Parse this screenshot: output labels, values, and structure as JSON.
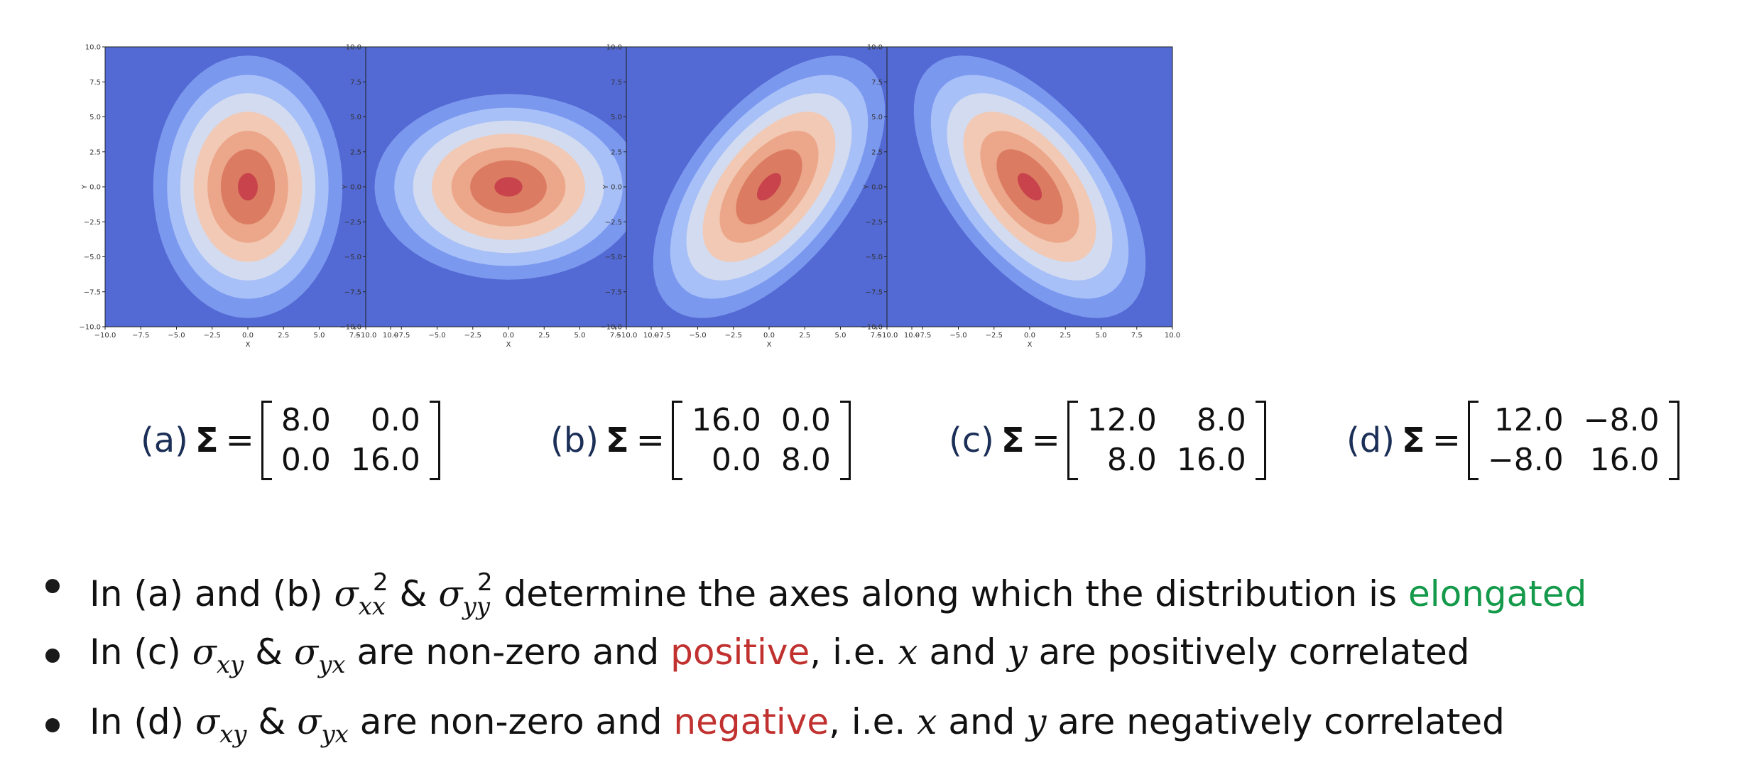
{
  "chart_data": [
    {
      "type": "contour",
      "x_range": [
        -10,
        10
      ],
      "y_range": [
        -10,
        10
      ],
      "xlabel": "X",
      "ylabel": "Y",
      "xticks": [
        "−10.0",
        "−7.5",
        "−5.0",
        "−2.5",
        "0.0",
        "2.5",
        "5.0",
        "7.5",
        "10.0"
      ],
      "yticks": [
        "10.0",
        "7.5",
        "5.0",
        "2.5",
        "0.0",
        "−2.5",
        "−5.0",
        "−7.5",
        "−10.0"
      ],
      "mean": [
        0,
        0
      ],
      "covariance": [
        [
          8.0,
          0.0
        ],
        [
          0.0,
          16.0
        ]
      ],
      "levels": 7,
      "colormap": "coolwarm"
    },
    {
      "type": "contour",
      "x_range": [
        -10,
        10
      ],
      "y_range": [
        -10,
        10
      ],
      "xlabel": "X",
      "ylabel": "Y",
      "xticks": [
        "−10.0",
        "−7.5",
        "−5.0",
        "−2.5",
        "0.0",
        "2.5",
        "5.0",
        "7.5",
        "10.0"
      ],
      "yticks": [
        "10.0",
        "7.5",
        "5.0",
        "2.5",
        "0.0",
        "−2.5",
        "−5.0",
        "−7.5",
        "−10.0"
      ],
      "mean": [
        0,
        0
      ],
      "covariance": [
        [
          16.0,
          0.0
        ],
        [
          0.0,
          8.0
        ]
      ],
      "levels": 7,
      "colormap": "coolwarm"
    },
    {
      "type": "contour",
      "x_range": [
        -10,
        10
      ],
      "y_range": [
        -10,
        10
      ],
      "xlabel": "X",
      "ylabel": "Y",
      "xticks": [
        "−10.0",
        "−7.5",
        "−5.0",
        "−2.5",
        "0.0",
        "2.5",
        "5.0",
        "7.5",
        "10.0"
      ],
      "yticks": [
        "10.0",
        "7.5",
        "5.0",
        "2.5",
        "0.0",
        "−2.5",
        "−5.0",
        "−7.5",
        "−10.0"
      ],
      "mean": [
        0,
        0
      ],
      "covariance": [
        [
          12.0,
          8.0
        ],
        [
          8.0,
          16.0
        ]
      ],
      "levels": 7,
      "colormap": "coolwarm"
    },
    {
      "type": "contour",
      "x_range": [
        -10,
        10
      ],
      "y_range": [
        -10,
        10
      ],
      "xlabel": "X",
      "ylabel": "Y",
      "xticks": [
        "−10.0",
        "−7.5",
        "−5.0",
        "−2.5",
        "0.0",
        "2.5",
        "5.0",
        "7.5",
        "10.0"
      ],
      "yticks": [
        "10.0",
        "7.5",
        "5.0",
        "2.5",
        "0.0",
        "−2.5",
        "−5.0",
        "−7.5",
        "−10.0"
      ],
      "mean": [
        0,
        0
      ],
      "covariance": [
        [
          12.0,
          -8.0
        ],
        [
          -8.0,
          16.0
        ]
      ],
      "levels": 7,
      "colormap": "coolwarm"
    }
  ],
  "contour_colors": [
    "#5369d3",
    "#7b98ef",
    "#a8c0f8",
    "#d2dbef",
    "#f2c9b4",
    "#eca78a",
    "#db7c62",
    "#c8434b"
  ],
  "captions": [
    {
      "label": "(a)",
      "sigma": "Σ",
      "eq": "=",
      "m": [
        [
          "8.0",
          "0.0"
        ],
        [
          "0.0",
          "16.0"
        ]
      ]
    },
    {
      "label": "(b)",
      "sigma": "Σ",
      "eq": "=",
      "m": [
        [
          "16.0",
          "0.0"
        ],
        [
          "0.0",
          "8.0"
        ]
      ]
    },
    {
      "label": "(c)",
      "sigma": "Σ",
      "eq": "=",
      "m": [
        [
          "12.0",
          "8.0"
        ],
        [
          "8.0",
          "16.0"
        ]
      ]
    },
    {
      "label": "(d)",
      "sigma": "Σ",
      "eq": "=",
      "m": [
        [
          "12.0",
          "−8.0"
        ],
        [
          "−8.0",
          "16.0"
        ]
      ]
    }
  ],
  "bullets": {
    "b1": {
      "pre": "In (a) and (b) ",
      "sxx": "σ",
      "sxx_sub": "xx",
      "sxx_sup": "2",
      "amp": " & ",
      "syy": "σ",
      "syy_sub": "yy",
      "syy_sup": "2",
      "post": " determine the axes along which the distribution is ",
      "highlight": "elongated"
    },
    "b2": {
      "pre": "In (c) ",
      "s1": "σ",
      "s1_sub": "xy",
      "amp": " & ",
      "s2": "σ",
      "s2_sub": "yx",
      "mid": " are non-zero and ",
      "highlight": "positive",
      "ie": ", i.e. ",
      "x": "x",
      "and": " and ",
      "y": "y",
      "post": " are positively correlated"
    },
    "b3": {
      "pre": "In (d) ",
      "s1": "σ",
      "s1_sub": "xy",
      "amp": " & ",
      "s2": "σ",
      "s2_sub": "yx",
      "mid": " are non-zero and ",
      "highlight": "negative",
      "ie": ", i.e. ",
      "x": "x",
      "and": " and ",
      "y": "y",
      "post": " are negatively correlated"
    }
  }
}
